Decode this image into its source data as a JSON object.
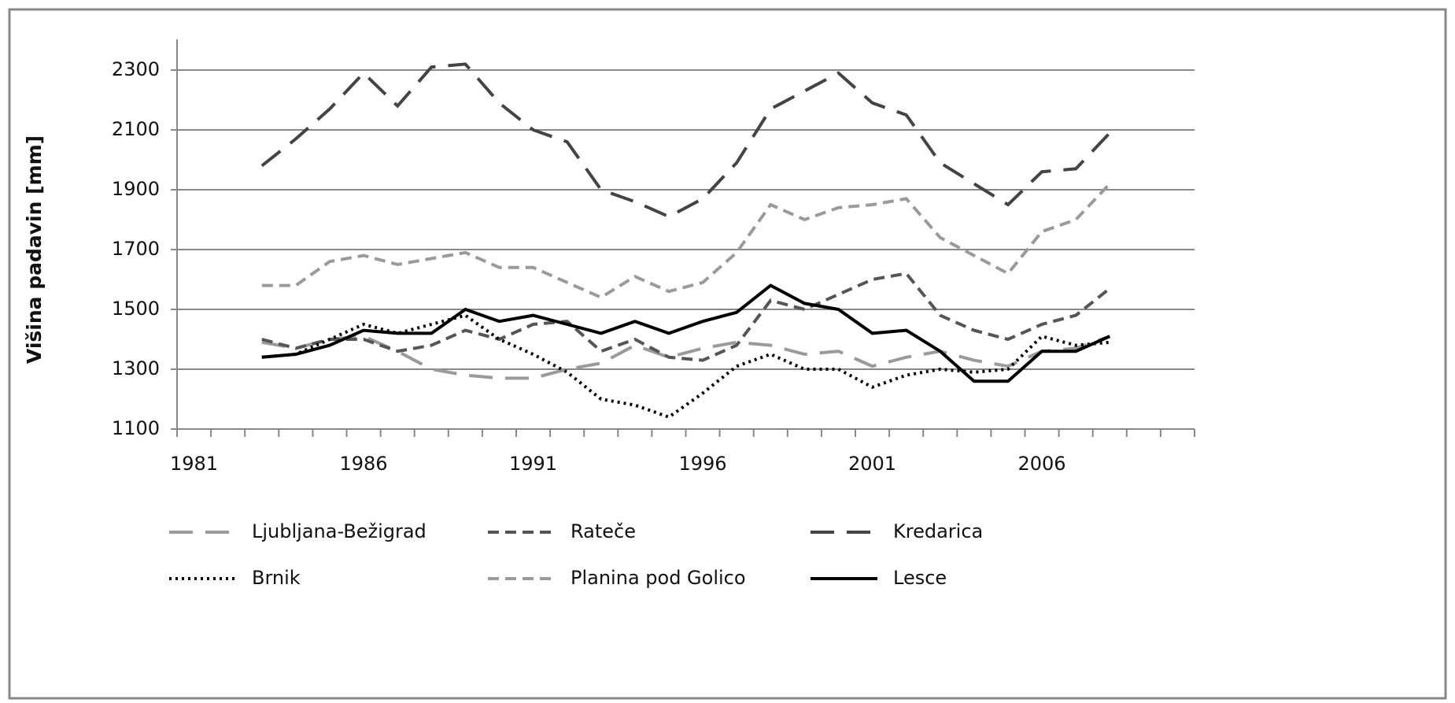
{
  "chart_data": {
    "type": "line",
    "y_label": "Višina padavin [mm]",
    "categories": [
      "1981",
      null,
      null,
      null,
      null,
      "1986",
      null,
      null,
      null,
      null,
      "1991",
      null,
      null,
      null,
      null,
      "1996",
      null,
      null,
      null,
      null,
      "2001",
      null,
      null,
      null,
      null,
      "2006",
      null,
      null,
      null,
      null
    ],
    "series": [
      {
        "name": "Ljubljana-Bežigrad",
        "color": "#9a9a9a",
        "dash": "long-dash",
        "values": [
          null,
          null,
          1390,
          1370,
          1400,
          1410,
          1360,
          1300,
          1280,
          1270,
          1270,
          1300,
          1320,
          1380,
          1340,
          1370,
          1390,
          1380,
          1350,
          1360,
          1310,
          1340,
          1360,
          1330,
          1310,
          1360,
          1370,
          1410,
          null,
          null
        ]
      },
      {
        "name": "Rateče",
        "color": "#555555",
        "dash": "dash",
        "values": [
          null,
          null,
          1400,
          1370,
          1400,
          1400,
          1360,
          1380,
          1430,
          1400,
          1450,
          1460,
          1360,
          1400,
          1340,
          1330,
          1380,
          1530,
          1500,
          1550,
          1600,
          1620,
          1480,
          1430,
          1400,
          1450,
          1480,
          1570,
          null,
          null
        ]
      },
      {
        "name": "Kredarica",
        "color": "#444444",
        "dash": "long-dash",
        "values": [
          null,
          null,
          1980,
          2070,
          2170,
          2290,
          2180,
          2310,
          2320,
          2190,
          2100,
          2060,
          1900,
          1860,
          1810,
          1870,
          1990,
          2170,
          2230,
          2290,
          2190,
          2150,
          1990,
          1920,
          1850,
          1960,
          1970,
          2090,
          null,
          null
        ]
      },
      {
        "name": "Brnik",
        "color": "#000000",
        "dash": "dotted",
        "values": [
          null,
          null,
          1340,
          1350,
          1400,
          1450,
          1420,
          1450,
          1480,
          1400,
          1350,
          1290,
          1200,
          1180,
          1140,
          1220,
          1310,
          1350,
          1300,
          1300,
          1240,
          1280,
          1300,
          1290,
          1300,
          1410,
          1380,
          1390,
          null,
          null
        ]
      },
      {
        "name": "Planina pod Golico",
        "color": "#9a9a9a",
        "dash": "dash",
        "values": [
          null,
          null,
          1580,
          1580,
          1660,
          1680,
          1650,
          1670,
          1690,
          1640,
          1640,
          1590,
          1540,
          1610,
          1560,
          1590,
          1690,
          1850,
          1800,
          1840,
          1850,
          1870,
          1740,
          1680,
          1620,
          1760,
          1800,
          1920,
          null,
          null
        ]
      },
      {
        "name": "Lesce",
        "color": "#000000",
        "dash": "solid",
        "values": [
          null,
          null,
          1340,
          1350,
          1380,
          1430,
          1420,
          1420,
          1500,
          1460,
          1480,
          1450,
          1420,
          1460,
          1420,
          1460,
          1490,
          1580,
          1520,
          1500,
          1420,
          1430,
          1360,
          1260,
          1260,
          1360,
          1360,
          1410,
          null,
          null
        ]
      }
    ],
    "ylim": [
      1100,
      2300
    ],
    "yticks": [
      1100,
      1300,
      1500,
      1700,
      1900,
      2100,
      2300
    ],
    "grid": true,
    "legend": "bottom"
  }
}
